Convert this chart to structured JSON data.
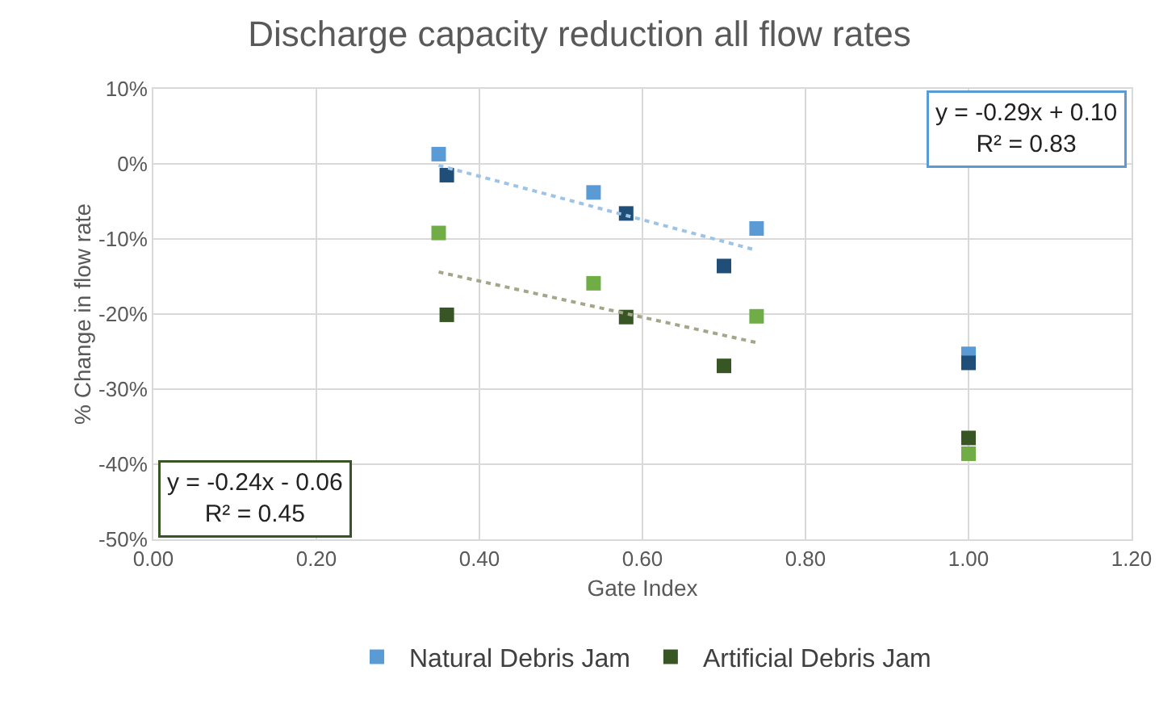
{
  "chart_data": {
    "type": "scatter",
    "title": "Discharge capacity reduction all flow rates",
    "xlabel": "Gate Index",
    "ylabel": "% Change in flow rate",
    "xlim": [
      0,
      1.2
    ],
    "xticks": [
      {
        "value": 0,
        "label": "0.00"
      },
      {
        "value": 0.2,
        "label": "0.20"
      },
      {
        "value": 0.4,
        "label": "0.40"
      },
      {
        "value": 0.6,
        "label": "0.60"
      },
      {
        "value": 0.8,
        "label": "0.80"
      },
      {
        "value": 1,
        "label": "1.00"
      },
      {
        "value": 1.2,
        "label": "1.20"
      }
    ],
    "ylim": [
      -50,
      10
    ],
    "yticks": [
      {
        "value": -50,
        "label": "-50%"
      },
      {
        "value": -40,
        "label": "-40%"
      },
      {
        "value": -30,
        "label": "-30%"
      },
      {
        "value": -20,
        "label": "-20%"
      },
      {
        "value": -10,
        "label": "-10%"
      },
      {
        "value": 0,
        "label": "0%"
      },
      {
        "value": 10,
        "label": "10%"
      }
    ],
    "grid": true,
    "legend": "bottom",
    "marker": "square",
    "series": [
      {
        "name": "Natural Debris Jam",
        "color": "#5b9bd5",
        "x": [
          0.35,
          0.54,
          0.74,
          1.0
        ],
        "values": [
          1.3,
          -3.8,
          -8.6,
          -25.3
        ]
      },
      {
        "color": "#1f4e79",
        "x": [
          0.36,
          0.58,
          0.7,
          1.0
        ],
        "values": [
          -1.5,
          -6.6,
          -13.6,
          -26.5
        ]
      },
      {
        "color": "#70ad47",
        "x": [
          0.35,
          0.54,
          0.74,
          1.0
        ],
        "values": [
          -9.2,
          -15.9,
          -20.3,
          -38.6
        ]
      },
      {
        "name": "Artificial Debris Jam",
        "color": "#375623",
        "x": [
          0.36,
          0.58,
          0.7,
          1.0
        ],
        "values": [
          -20.1,
          -20.4,
          -26.9,
          -36.5
        ]
      },
      {
        "type": "line",
        "color": "#9dc3e6",
        "line_style": "dotted",
        "marker": "none",
        "x": [
          0.35,
          0.74
        ],
        "values": [
          -0.2,
          -11.5
        ]
      },
      {
        "type": "line",
        "color": "#a5a58a",
        "line_style": "dotted",
        "marker": "none",
        "x": [
          0.35,
          0.74
        ],
        "values": [
          -14.4,
          -23.8
        ]
      }
    ],
    "annotations": [
      "y = -0.29x + 0.10\nR² = 0.83",
      "y = -0.24x - 0.06\nR² = 0.45"
    ]
  }
}
